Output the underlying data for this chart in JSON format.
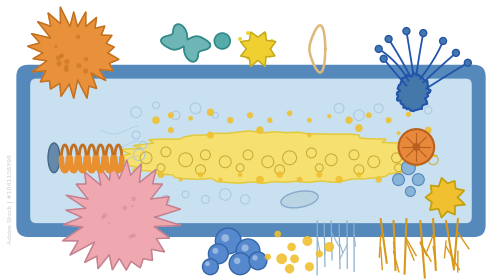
{
  "bg_color": "#ffffff",
  "cell_border_color": "#5588bb",
  "cell_fill_color": "#c8e0f0",
  "cell_inner_border": "#4a7aaa",
  "nucleus_fill": "#f5e070",
  "nucleus_edge": "#e0c840",
  "coil_orange": "#e89030",
  "coil_dark": "#c07020",
  "coil_cap": "#5577aa",
  "virus_orange_fill": "#e8903a",
  "virus_orange_edge": "#c07020",
  "teal_fill": "#55aaaa",
  "teal_edge": "#338888",
  "yellow_star_fill": "#f0d030",
  "yellow_star_edge": "#c0a820",
  "blue_neuron_fill": "#4477aa",
  "blue_neuron_edge": "#2255aa",
  "orange_org_fill": "#e8883a",
  "orange_org_edge": "#b86020",
  "yellow_org_fill": "#f0c030",
  "yellow_org_edge": "#c0a010",
  "pink_virus_fill": "#f0a8b0",
  "pink_virus_edge": "#c08090",
  "blue_dot_fill": "#5588cc",
  "blue_dot_edge": "#3366aa",
  "figsize": [
    5.0,
    2.8
  ],
  "dpi": 100
}
